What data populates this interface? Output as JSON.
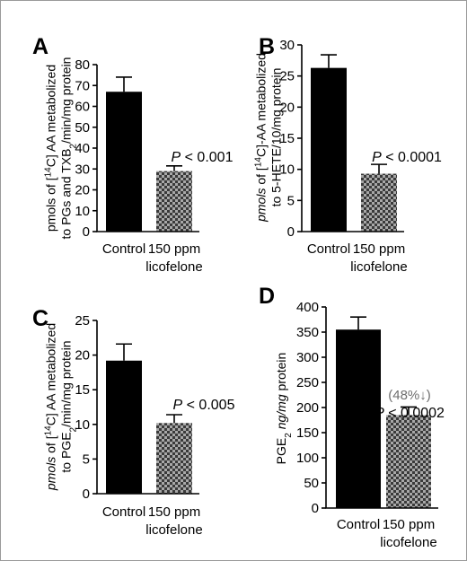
{
  "chart_data": [
    {
      "panel": "A",
      "type": "bar",
      "categories": [
        "Control",
        "150 ppm\nlicofelone"
      ],
      "values": [
        67,
        29
      ],
      "errors": [
        7,
        2.5
      ],
      "ylabel_lines": [
        "pmols of [<sup>14</sup>C] AA metabolized",
        "to PGs and TXB<sub>2</sub>/min/mg protein"
      ],
      "ylabel_italic_prefix": "",
      "ylim": [
        0,
        80
      ],
      "yticks": [
        0,
        10,
        20,
        30,
        40,
        50,
        60,
        70,
        80
      ],
      "annotation": "P < 0.001",
      "annotation_note": ""
    },
    {
      "panel": "B",
      "type": "bar",
      "categories": [
        "Control",
        "150 ppm\nlicofelone"
      ],
      "values": [
        26.3,
        9.3
      ],
      "errors": [
        2.1,
        1.5
      ],
      "ylabel_lines": [
        "<i>pmols</i> of [<sup>14</sup>C]-AA metabolized",
        "to 5-HETE/10/mg protein"
      ],
      "ylim": [
        0,
        30
      ],
      "yticks": [
        0,
        5,
        10,
        15,
        20,
        25,
        30
      ],
      "annotation": "P < 0.0001",
      "annotation_note": ""
    },
    {
      "panel": "C",
      "type": "bar",
      "categories": [
        "Control",
        "150 ppm\nlicofelone"
      ],
      "values": [
        19.2,
        10.2
      ],
      "errors": [
        2.4,
        1.2
      ],
      "ylabel_lines": [
        "<i>pmols</i> of [<sup>14</sup>C] AA metabolized",
        "to PGE<sub>2</sub>/min/mg protein"
      ],
      "ylim": [
        0,
        25
      ],
      "yticks": [
        0,
        5,
        10,
        15,
        20,
        25
      ],
      "annotation": "P < 0.005",
      "annotation_note": ""
    },
    {
      "panel": "D",
      "type": "bar",
      "categories": [
        "Control",
        "150 ppm\nlicofelone"
      ],
      "values": [
        355,
        185
      ],
      "errors": [
        25,
        16
      ],
      "ylabel_lines": [
        "PGE<sub>2</sub> <i>ng/mg</i> protein"
      ],
      "ylim": [
        0,
        400
      ],
      "yticks": [
        0,
        50,
        100,
        150,
        200,
        250,
        300,
        350,
        400
      ],
      "annotation": "P < 0.0002",
      "annotation_note": "(48%↓)"
    }
  ],
  "colors": {
    "control": "#000000",
    "treated_pattern_dark": "#3a3a3a",
    "treated_pattern_light": "#a8a8a8",
    "note": "#6e6e6e"
  }
}
